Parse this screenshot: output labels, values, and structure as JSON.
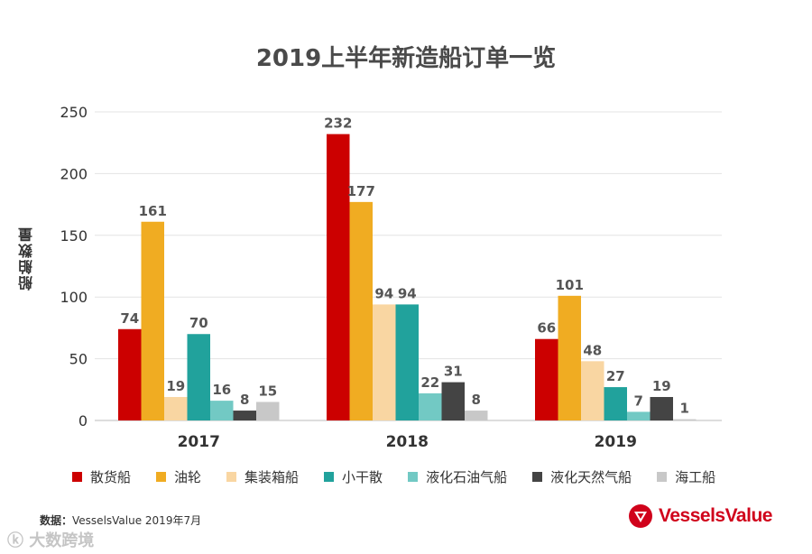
{
  "page": {
    "source_label": "数据：",
    "source_text": "VesselsValue 2019年7月",
    "logo_text": "VesselsValue",
    "watermark": "ⓚ 大数跨境"
  },
  "chart_data": {
    "type": "bar",
    "title": "2019上半年新造船订单一览",
    "xlabel": "",
    "ylabel": "船舶数量",
    "ylim": [
      0,
      250
    ],
    "yticks": [
      0,
      50,
      100,
      150,
      200,
      250
    ],
    "grid": true,
    "legend_position": "bottom",
    "categories": [
      "2017",
      "2018",
      "2019"
    ],
    "series": [
      {
        "name": "散货船",
        "color": "#cc0000",
        "values": [
          74,
          232,
          66
        ]
      },
      {
        "name": "油轮",
        "color": "#f0ac22",
        "values": [
          161,
          177,
          101
        ]
      },
      {
        "name": "集装箱船",
        "color": "#f9d6a2",
        "values": [
          19,
          94,
          48
        ]
      },
      {
        "name": "小干散",
        "color": "#21a29c",
        "values": [
          70,
          94,
          27
        ]
      },
      {
        "name": "液化石油气船",
        "color": "#72c9c4",
        "values": [
          16,
          22,
          7
        ]
      },
      {
        "name": "液化天然气船",
        "color": "#444444",
        "values": [
          8,
          31,
          19
        ]
      },
      {
        "name": "海工船",
        "color": "#c8c8c8",
        "values": [
          15,
          8,
          1
        ]
      }
    ]
  }
}
